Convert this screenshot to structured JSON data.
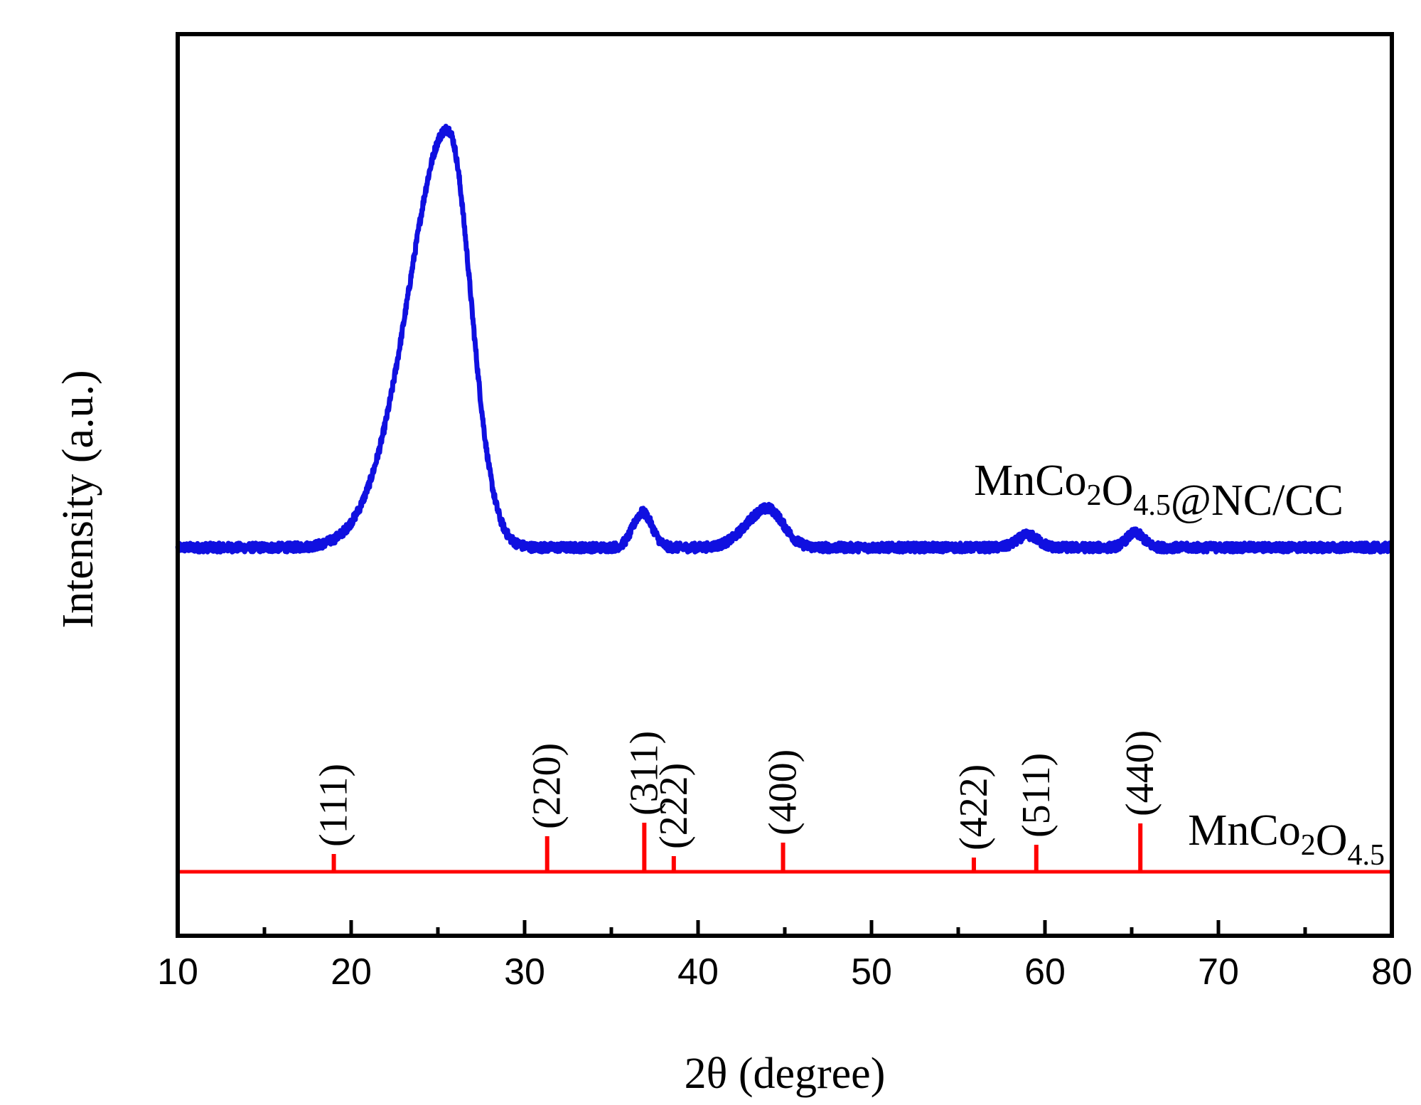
{
  "chart_data": {
    "type": "line",
    "title": "",
    "xlabel": "2θ (degree)",
    "ylabel": "Intensity (a.u.)",
    "xlim": [
      10,
      80
    ],
    "xticks": [
      10,
      20,
      30,
      40,
      50,
      60,
      70,
      80
    ],
    "yticks": [],
    "grid": false,
    "legend": "none",
    "colors": {
      "measured": "#1010e0",
      "reference": "#ff0000",
      "axis": "#000000"
    },
    "series": [
      {
        "name": "MnCo2O4.5@NC/CC",
        "label_parts": [
          {
            "t": "MnCo",
            "s": ""
          },
          {
            "t": "2",
            "s": "sub"
          },
          {
            "t": "O",
            "s": ""
          },
          {
            "t": "4.5",
            "s": "sub"
          },
          {
            "t": "@NC/CC",
            "s": ""
          }
        ],
        "baseline": 0.02,
        "peaks": [
          {
            "x": 25.6,
            "h": 1.0,
            "sl": 2.1,
            "sr": 1.3
          },
          {
            "x": 22.4,
            "h": 0.08,
            "sl": 1.8,
            "sr": 1.8
          },
          {
            "x": 36.8,
            "h": 0.085,
            "sl": 0.55,
            "sr": 0.55
          },
          {
            "x": 44.0,
            "h": 0.095,
            "sl": 1.2,
            "sr": 0.9
          },
          {
            "x": 59.0,
            "h": 0.03,
            "sl": 0.6,
            "sr": 0.6
          },
          {
            "x": 65.2,
            "h": 0.035,
            "sl": 0.5,
            "sr": 0.5
          }
        ]
      },
      {
        "name": "MnCo2O4.5",
        "label_parts": [
          {
            "t": "MnCo",
            "s": ""
          },
          {
            "t": "2",
            "s": "sub"
          },
          {
            "t": "O",
            "s": ""
          },
          {
            "t": "4.5",
            "s": "sub"
          }
        ],
        "reflections": [
          {
            "x": 19.0,
            "h": 0.25,
            "hkl": "(111)"
          },
          {
            "x": 31.3,
            "h": 0.5,
            "hkl": "(220)"
          },
          {
            "x": 36.9,
            "h": 0.69,
            "hkl": "(311)"
          },
          {
            "x": 38.6,
            "h": 0.22,
            "hkl": "(222)"
          },
          {
            "x": 44.9,
            "h": 0.41,
            "hkl": "(400)"
          },
          {
            "x": 55.9,
            "h": 0.2,
            "hkl": "(422)"
          },
          {
            "x": 59.5,
            "h": 0.38,
            "hkl": "(511)"
          },
          {
            "x": 65.5,
            "h": 0.68,
            "hkl": "(440)"
          }
        ]
      }
    ]
  }
}
